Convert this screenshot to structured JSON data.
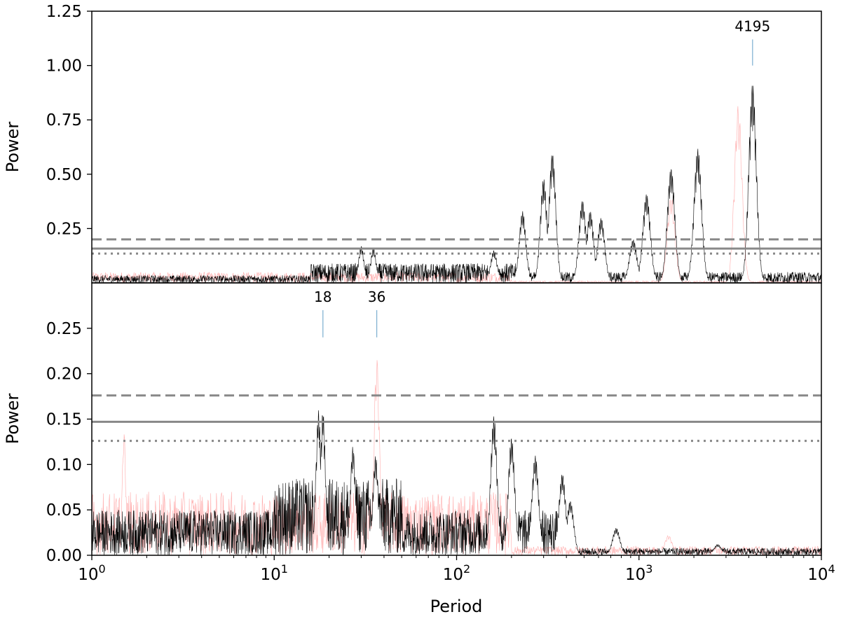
{
  "chart_data": [
    {
      "type": "line",
      "panel": "top",
      "xscale": "log",
      "xlim": [
        1,
        10000
      ],
      "ylim": [
        0,
        1.25
      ],
      "xlabel": "",
      "ylabel": "Power",
      "yticks": [
        "1.25",
        "1.00",
        "0.75",
        "0.50",
        "0.25"
      ],
      "ytick_values": [
        1.25,
        1.0,
        0.75,
        0.5,
        0.25
      ],
      "thresholds": [
        {
          "style": "dashed",
          "value": 0.2
        },
        {
          "style": "solid",
          "value": 0.158
        },
        {
          "style": "dotted",
          "value": 0.135
        }
      ],
      "annotations": [
        {
          "label": "4195",
          "x": 4195,
          "y_low": 1.0,
          "y_high": 1.12
        }
      ],
      "peaks_black": [
        [
          30,
          0.17
        ],
        [
          35,
          0.16
        ],
        [
          160,
          0.15
        ],
        [
          230,
          0.33
        ],
        [
          300,
          0.48
        ],
        [
          335,
          0.6
        ],
        [
          490,
          0.38
        ],
        [
          540,
          0.33
        ],
        [
          620,
          0.3
        ],
        [
          930,
          0.2
        ],
        [
          1100,
          0.41
        ],
        [
          1500,
          0.53
        ],
        [
          2100,
          0.62
        ],
        [
          4195,
          0.92
        ]
      ],
      "peaks_red": [
        [
          1500,
          0.4
        ],
        [
          3500,
          0.82
        ]
      ],
      "colors": {
        "primary": "#000000",
        "secondary": "#ff6666",
        "threshold": "#888888",
        "annotation": "#7aaed0"
      }
    },
    {
      "type": "line",
      "panel": "bottom",
      "xscale": "log",
      "xlim": [
        1,
        10000
      ],
      "ylim": [
        0,
        0.3
      ],
      "xlabel": "Period",
      "ylabel": "Power",
      "yticks": [
        "0.25",
        "0.20",
        "0.15",
        "0.10",
        "0.05",
        "0.00"
      ],
      "ytick_values": [
        0.25,
        0.2,
        0.15,
        0.1,
        0.05,
        0.0
      ],
      "xticks": [
        {
          "base": "10",
          "exp": "0",
          "value": 1
        },
        {
          "base": "10",
          "exp": "1",
          "value": 10
        },
        {
          "base": "10",
          "exp": "2",
          "value": 100
        },
        {
          "base": "10",
          "exp": "3",
          "value": 1000
        },
        {
          "base": "10",
          "exp": "4",
          "value": 10000
        }
      ],
      "thresholds": [
        {
          "style": "dashed",
          "value": 0.176
        },
        {
          "style": "solid",
          "value": 0.147
        },
        {
          "style": "dotted",
          "value": 0.126
        }
      ],
      "annotations": [
        {
          "label": "18",
          "x": 18.5,
          "y_low": 0.24,
          "y_high": 0.27
        },
        {
          "label": "36",
          "x": 36.5,
          "y_low": 0.24,
          "y_high": 0.27
        }
      ],
      "peaks_black": [
        [
          17.5,
          0.16
        ],
        [
          18.5,
          0.16
        ],
        [
          27,
          0.12
        ],
        [
          36,
          0.11
        ],
        [
          160,
          0.154
        ],
        [
          200,
          0.13
        ],
        [
          270,
          0.11
        ],
        [
          380,
          0.09
        ],
        [
          420,
          0.06
        ],
        [
          750,
          0.03
        ],
        [
          2700,
          0.012
        ]
      ],
      "peaks_red": [
        [
          36.5,
          0.22
        ],
        [
          1.5,
          0.14
        ],
        [
          1450,
          0.022
        ]
      ],
      "colors": {
        "primary": "#000000",
        "secondary": "#ff6666",
        "threshold": "#888888",
        "annotation": "#7aaed0"
      }
    }
  ]
}
